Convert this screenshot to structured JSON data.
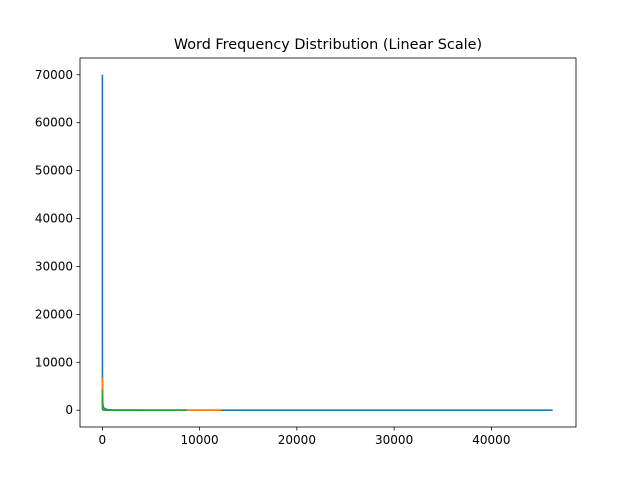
{
  "chart_data": {
    "type": "line",
    "title": "Word Frequency Distribution (Linear Scale)",
    "xlabel": "",
    "ylabel": "",
    "xlim": [
      -2300,
      48700
    ],
    "ylim": [
      -3500,
      73500
    ],
    "x_ticks": [
      0,
      10000,
      20000,
      30000,
      40000
    ],
    "y_ticks": [
      0,
      10000,
      20000,
      30000,
      40000,
      50000,
      60000,
      70000
    ],
    "grid": false,
    "legend": "none",
    "series": [
      {
        "color": "#1f77b4",
        "x": [
          0,
          1,
          2,
          5,
          10,
          20,
          50,
          100,
          200,
          500,
          1000,
          2000,
          5000,
          10000,
          20000,
          30000,
          40000,
          46300
        ],
        "y": [
          70000,
          36000,
          24000,
          11000,
          6000,
          3200,
          1300,
          680,
          350,
          140,
          70,
          35,
          14,
          7,
          3,
          2,
          1,
          1
        ]
      },
      {
        "color": "#ff7f0e",
        "x": [
          0,
          1,
          2,
          5,
          10,
          20,
          50,
          100,
          200,
          500,
          1000,
          2000,
          5000,
          8000,
          12200
        ],
        "y": [
          6800,
          3500,
          2300,
          1000,
          550,
          300,
          120,
          62,
          32,
          13,
          7,
          4,
          2,
          1,
          1
        ]
      },
      {
        "color": "#2ca02c",
        "x": [
          0,
          1,
          2,
          5,
          10,
          20,
          50,
          100,
          200,
          500,
          1000,
          2000,
          5000,
          8700
        ],
        "y": [
          4300,
          2200,
          1450,
          650,
          350,
          190,
          80,
          40,
          20,
          8,
          4,
          2,
          1,
          1
        ]
      }
    ]
  }
}
